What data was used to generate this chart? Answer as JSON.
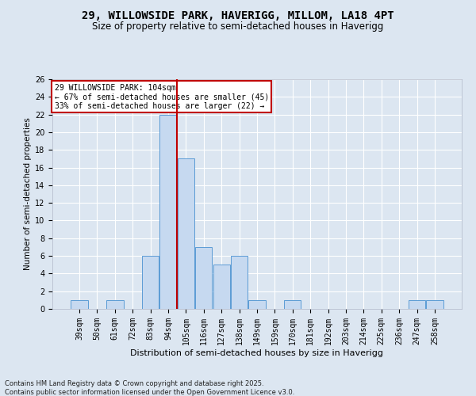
{
  "title1": "29, WILLOWSIDE PARK, HAVERIGG, MILLOM, LA18 4PT",
  "title2": "Size of property relative to semi-detached houses in Haverigg",
  "xlabel": "Distribution of semi-detached houses by size in Haverigg",
  "ylabel": "Number of semi-detached properties",
  "categories": [
    "39sqm",
    "50sqm",
    "61sqm",
    "72sqm",
    "83sqm",
    "94sqm",
    "105sqm",
    "116sqm",
    "127sqm",
    "138sqm",
    "149sqm",
    "159sqm",
    "170sqm",
    "181sqm",
    "192sqm",
    "203sqm",
    "214sqm",
    "225sqm",
    "236sqm",
    "247sqm",
    "258sqm"
  ],
  "values": [
    1,
    0,
    1,
    0,
    6,
    22,
    17,
    7,
    5,
    6,
    1,
    0,
    1,
    0,
    0,
    0,
    0,
    0,
    0,
    1,
    1
  ],
  "bar_color": "#c6d9f0",
  "bar_edge_color": "#5b9bd5",
  "vline_x": 5.5,
  "vline_color": "#c00000",
  "ylim": [
    0,
    26
  ],
  "yticks": [
    0,
    2,
    4,
    6,
    8,
    10,
    12,
    14,
    16,
    18,
    20,
    22,
    24,
    26
  ],
  "annotation_title": "29 WILLOWSIDE PARK: 104sqm",
  "annotation_line1": "← 67% of semi-detached houses are smaller (45)",
  "annotation_line2": "33% of semi-detached houses are larger (22) →",
  "annotation_box_color": "#c00000",
  "footer1": "Contains HM Land Registry data © Crown copyright and database right 2025.",
  "footer2": "Contains public sector information licensed under the Open Government Licence v3.0.",
  "bg_color": "#dce6f1",
  "plot_bg_color": "#dce6f1",
  "grid_color": "#ffffff",
  "title1_fontsize": 10,
  "title2_fontsize": 8.5,
  "ylabel_fontsize": 7.5,
  "xlabel_fontsize": 8,
  "tick_fontsize": 7,
  "annotation_fontsize": 7,
  "footer_fontsize": 6
}
